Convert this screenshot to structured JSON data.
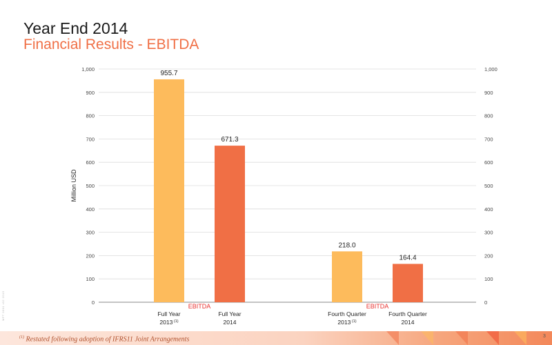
{
  "slide": {
    "title": "Year End 2014",
    "subtitle": "Financial Results - EBITDA",
    "side_text": "MFT 0001 r02 2015",
    "footnote_marker": "(1)",
    "footnote_text": "Restated following adoption of IFRS11 Joint Arrangements",
    "page_number": "3"
  },
  "colors": {
    "bar_2013": "#fdbb5c",
    "bar_2014": "#f06f45",
    "group_label": "#e8312f",
    "title_accent": "#f06f45"
  },
  "chart_data": {
    "type": "bar",
    "ylabel": "Million USD",
    "ylim": [
      0,
      1000
    ],
    "yticks": [
      "0",
      "100",
      "200",
      "300",
      "400",
      "500",
      "600",
      "700",
      "800",
      "900",
      "1,000"
    ],
    "grid": true,
    "groups": [
      {
        "group_label": "EBITDA",
        "bars": [
          {
            "label_line1": "Full Year",
            "label_line2": "2013",
            "label_sup": "(1)",
            "value": 955.7,
            "value_label": "955.7",
            "color_key": "bar_2013"
          },
          {
            "label_line1": "Full Year",
            "label_line2": "2014",
            "label_sup": "",
            "value": 671.3,
            "value_label": "671.3",
            "color_key": "bar_2014"
          }
        ]
      },
      {
        "group_label": "EBITDA",
        "bars": [
          {
            "label_line1": "Fourth Quarter",
            "label_line2": "2013",
            "label_sup": "(1)",
            "value": 218.0,
            "value_label": "218.0",
            "color_key": "bar_2013"
          },
          {
            "label_line1": "Fourth Quarter",
            "label_line2": "2014",
            "label_sup": "",
            "value": 164.4,
            "value_label": "164.4",
            "color_key": "bar_2014"
          }
        ]
      }
    ]
  }
}
